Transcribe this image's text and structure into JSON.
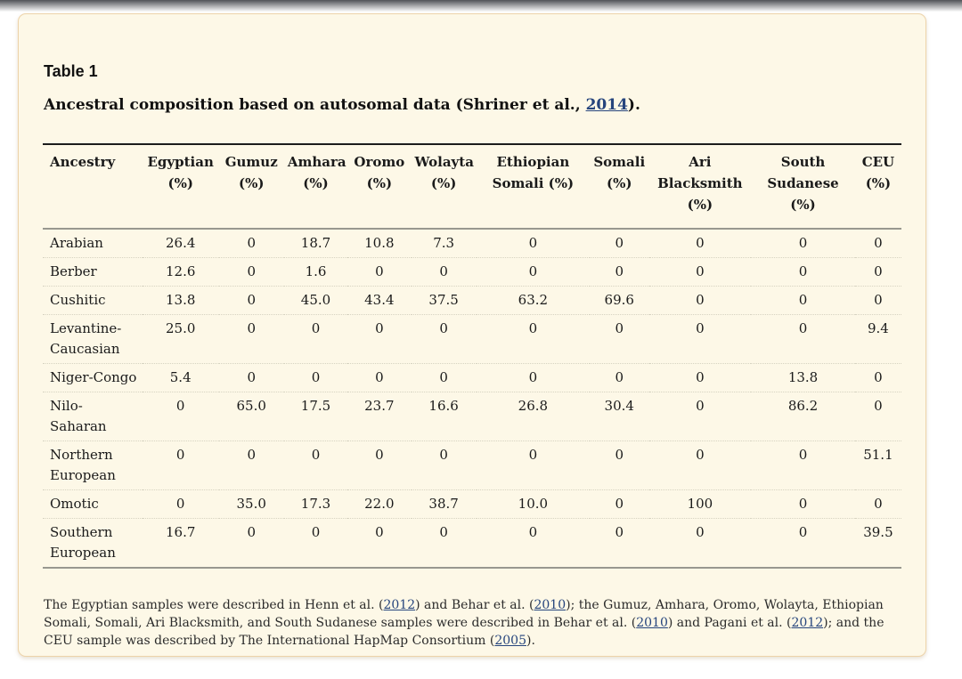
{
  "header": {
    "label": "Table 1",
    "caption": {
      "segments": [
        {
          "t": "text",
          "v": "Ancestral composition based on autosomal data (Shriner et al., "
        },
        {
          "t": "link",
          "v": "2014"
        },
        {
          "t": "text",
          "v": ")."
        }
      ]
    }
  },
  "table": {
    "columns": [
      "Ancestry",
      "Egyptian (%)",
      "Gumuz (%)",
      "Amhara (%)",
      "Oromo (%)",
      "Wolayta (%)",
      "Ethiopian Somali (%)",
      "Somali (%)",
      "Ari Blacksmith (%)",
      "South Sudanese (%)",
      "CEU (%)"
    ],
    "rows": [
      {
        "ancestry": "Arabian",
        "values": [
          "26.4",
          "0",
          "18.7",
          "10.8",
          "7.3",
          "0",
          "0",
          "0",
          "0",
          "0"
        ]
      },
      {
        "ancestry": "Berber",
        "values": [
          "12.6",
          "0",
          "1.6",
          "0",
          "0",
          "0",
          "0",
          "0",
          "0",
          "0"
        ]
      },
      {
        "ancestry": "Cushitic",
        "values": [
          "13.8",
          "0",
          "45.0",
          "43.4",
          "37.5",
          "63.2",
          "69.6",
          "0",
          "0",
          "0"
        ]
      },
      {
        "ancestry": "Levantine-Caucasian",
        "values": [
          "25.0",
          "0",
          "0",
          "0",
          "0",
          "0",
          "0",
          "0",
          "0",
          "9.4"
        ]
      },
      {
        "ancestry": "Niger-Congo",
        "values": [
          "5.4",
          "0",
          "0",
          "0",
          "0",
          "0",
          "0",
          "0",
          "13.8",
          "0"
        ]
      },
      {
        "ancestry": "Nilo-Saharan",
        "values": [
          "0",
          "65.0",
          "17.5",
          "23.7",
          "16.6",
          "26.8",
          "30.4",
          "0",
          "86.2",
          "0"
        ]
      },
      {
        "ancestry": "Northern European",
        "values": [
          "0",
          "0",
          "0",
          "0",
          "0",
          "0",
          "0",
          "0",
          "0",
          "51.1"
        ]
      },
      {
        "ancestry": "Omotic",
        "values": [
          "0",
          "35.0",
          "17.3",
          "22.0",
          "38.7",
          "10.0",
          "0",
          "100",
          "0",
          "0"
        ]
      },
      {
        "ancestry": "Southern European",
        "values": [
          "16.7",
          "0",
          "0",
          "0",
          "0",
          "0",
          "0",
          "0",
          "0",
          "39.5"
        ]
      }
    ]
  },
  "footnote": {
    "segments": [
      {
        "t": "text",
        "v": "The Egyptian samples were described in Henn et al. ("
      },
      {
        "t": "link",
        "v": "2012"
      },
      {
        "t": "text",
        "v": ") and Behar et al. ("
      },
      {
        "t": "link",
        "v": "2010"
      },
      {
        "t": "text",
        "v": "); the Gumuz, Amhara, Oromo, Wolayta, Ethiopian Somali, Somali, Ari Blacksmith, and South Sudanese samples were described in Behar et al. ("
      },
      {
        "t": "link",
        "v": "2010"
      },
      {
        "t": "text",
        "v": ") and Pagani et al. ("
      },
      {
        "t": "link",
        "v": "2012"
      },
      {
        "t": "text",
        "v": "); and the CEU sample was described by The International HapMap Consortium ("
      },
      {
        "t": "link",
        "v": "2005"
      },
      {
        "t": "text",
        "v": ")."
      }
    ]
  },
  "colors": {
    "card_background": "#fdf8e7",
    "card_border": "#edd3a9",
    "link": "#26457d",
    "table_top_rule": "#1c1c1c",
    "table_mid_rule": "#98988f"
  }
}
